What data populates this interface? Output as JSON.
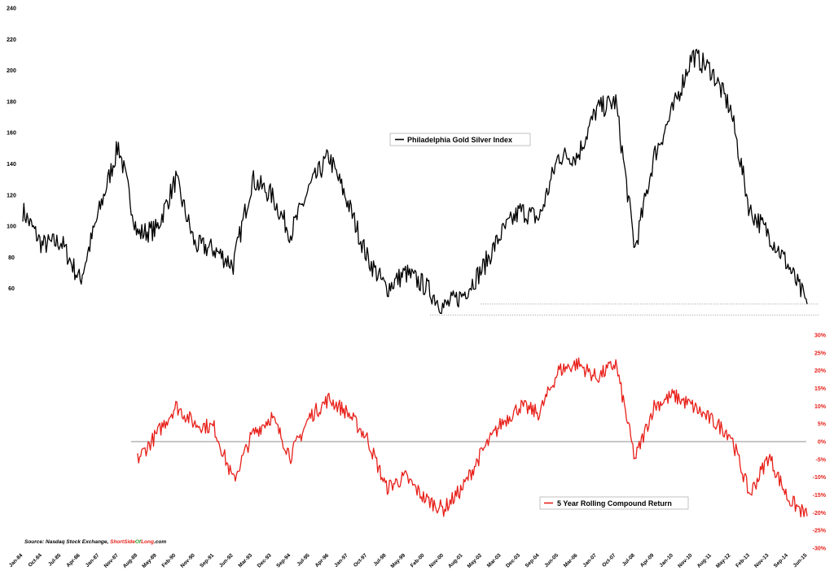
{
  "chart_data": [
    {
      "type": "line",
      "series": [
        {
          "name": "Philadelphia Gold Silver Index",
          "color": "#000000",
          "x": [
            "Jan-84",
            "Oct-84",
            "Jul-85",
            "Apr-86",
            "Jan-87",
            "Nov-87",
            "Aug-88",
            "May-89",
            "Feb-90",
            "Nov-90",
            "Sep-91",
            "Jun-92",
            "Mar-93",
            "Dec-93",
            "Sep-94",
            "Jul-95",
            "Apr-96",
            "Jan-97",
            "Oct-97",
            "Jul-98",
            "May-99",
            "Feb-00",
            "Nov-00",
            "Aug-01",
            "May-02",
            "Mar-03",
            "Dec-03",
            "Sep-04",
            "Jun-05",
            "Mar-06",
            "Jan-07",
            "Oct-07",
            "Jul-08",
            "Apr-09",
            "Jan-10",
            "Nov-10",
            "Aug-11",
            "May-12",
            "Feb-13",
            "Nov-13",
            "Sep-14",
            "Jun-15"
          ],
          "values": [
            110,
            88,
            90,
            65,
            110,
            152,
            95,
            98,
            130,
            88,
            85,
            75,
            130,
            120,
            95,
            125,
            145,
            115,
            80,
            60,
            70,
            62,
            48,
            56,
            72,
            95,
            110,
            105,
            145,
            145,
            175,
            180,
            85,
            145,
            175,
            210,
            200,
            175,
            110,
            95,
            75,
            50
          ]
        }
      ],
      "title": "",
      "xlabel": "",
      "ylabel": "",
      "ylim": [
        40,
        240
      ],
      "yticks": [
        "60",
        "80",
        "100",
        "120",
        "140",
        "160",
        "180",
        "200",
        "220",
        "240"
      ],
      "legend": "Philadelphia Gold Silver Index",
      "legend_position": "center",
      "reference_lines": [
        {
          "value": 50,
          "style": "dotted"
        },
        {
          "value": 43,
          "style": "dotted"
        }
      ]
    },
    {
      "type": "line",
      "series": [
        {
          "name": "5 Year Rolling Compound Return",
          "color": "#e8201a",
          "x": [
            "Aug-88",
            "May-89",
            "Feb-90",
            "Nov-90",
            "Sep-91",
            "Jun-92",
            "Mar-93",
            "Dec-93",
            "Sep-94",
            "Jul-95",
            "Apr-96",
            "Jan-97",
            "Oct-97",
            "Jul-98",
            "May-99",
            "Feb-00",
            "Nov-00",
            "Aug-01",
            "May-02",
            "Mar-03",
            "Dec-03",
            "Sep-04",
            "Jun-05",
            "Mar-06",
            "Jan-07",
            "Oct-07",
            "Jul-08",
            "Apr-09",
            "Jan-10",
            "Nov-10",
            "Aug-11",
            "May-12",
            "Feb-13",
            "Nov-13",
            "Sep-14",
            "Jun-15"
          ],
          "values": [
            -5,
            2,
            10,
            5,
            4,
            -11,
            2,
            7,
            -4,
            7,
            12,
            8,
            1,
            -13,
            -10,
            -16,
            -19,
            -13,
            -3,
            5,
            10,
            8,
            20,
            22,
            18,
            22,
            -5,
            10,
            13,
            10,
            6,
            2,
            -15,
            -4,
            -16,
            -21
          ]
        }
      ],
      "ylim": [
        -30,
        30
      ],
      "yticks": [
        "-30%",
        "-25%",
        "-20%",
        "-15%",
        "-10%",
        "-5%",
        "0%",
        "5%",
        "10%",
        "15%",
        "20%",
        "25%",
        "30%"
      ],
      "legend": "5 Year Rolling Compound Return",
      "legend_position": "bottom-right",
      "reference_lines": [
        {
          "value": 0,
          "style": "solid"
        }
      ]
    }
  ],
  "x_ticks": [
    "Jan-84",
    "Oct-84",
    "Jul-85",
    "Apr-86",
    "Jan-87",
    "Nov-87",
    "Aug-88",
    "May-89",
    "Feb-90",
    "Nov-90",
    "Sep-91",
    "Jun-92",
    "Mar-93",
    "Dec-93",
    "Sep-94",
    "Jul-95",
    "Apr-96",
    "Jan-97",
    "Oct-97",
    "Jul-98",
    "May-99",
    "Feb-00",
    "Nov-00",
    "Aug-01",
    "May-02",
    "Mar-03",
    "Dec-03",
    "Sep-04",
    "Jun-05",
    "Mar-06",
    "Jan-07",
    "Oct-07",
    "Jul-08",
    "Apr-09",
    "Jan-10",
    "Nov-10",
    "Aug-11",
    "May-12",
    "Feb-13",
    "Nov-13",
    "Sep-14",
    "Jun-15"
  ],
  "source": {
    "prefix": "Source: Nasdaq Stock Exchange, ",
    "brand_part1": "Short",
    "brand_part2": "Side",
    "brand_part3": "Of",
    "brand_part4": "Long",
    "brand_suffix": ".com",
    "brand_colors": {
      "part1": "#e8201a",
      "part2": "#e8201a",
      "part3": "#2a9d2a",
      "part4": "#e8201a"
    }
  }
}
